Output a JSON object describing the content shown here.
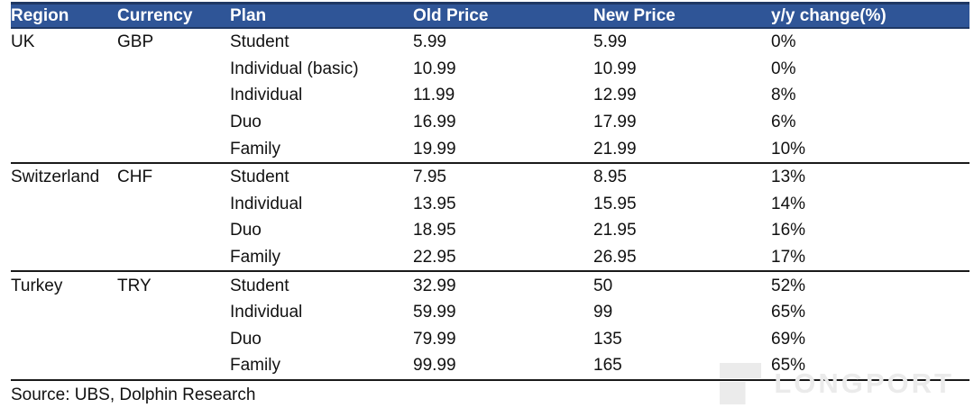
{
  "colors": {
    "header_bg": "#2F5597",
    "header_border": "#1F3864",
    "rule_color": "#1a1a1a",
    "watermark_color": "#ebebeb"
  },
  "table": {
    "columns": [
      "Region",
      "Currency",
      "Plan",
      "Old Price",
      "New Price",
      "y/y change(%)"
    ],
    "groups": [
      {
        "region": "UK",
        "currency": "GBP",
        "rows": [
          {
            "plan": "Student",
            "old": "5.99",
            "new": "5.99",
            "change": "0%"
          },
          {
            "plan": "Individual (basic)",
            "old": "10.99",
            "new": "10.99",
            "change": "0%"
          },
          {
            "plan": "Individual",
            "old": "11.99",
            "new": "12.99",
            "change": "8%"
          },
          {
            "plan": "Duo",
            "old": "16.99",
            "new": "17.99",
            "change": "6%"
          },
          {
            "plan": "Family",
            "old": "19.99",
            "new": "21.99",
            "change": "10%"
          }
        ]
      },
      {
        "region": "Switzerland",
        "currency": "CHF",
        "rows": [
          {
            "plan": "Student",
            "old": "7.95",
            "new": "8.95",
            "change": "13%"
          },
          {
            "plan": "Individual",
            "old": "13.95",
            "new": "15.95",
            "change": "14%"
          },
          {
            "plan": "Duo",
            "old": "18.95",
            "new": "21.95",
            "change": "16%"
          },
          {
            "plan": "Family",
            "old": "22.95",
            "new": "26.95",
            "change": "17%"
          }
        ]
      },
      {
        "region": "Turkey",
        "currency": "TRY",
        "rows": [
          {
            "plan": "Student",
            "old": "32.99",
            "new": "50",
            "change": "52%"
          },
          {
            "plan": "Individual",
            "old": "59.99",
            "new": "99",
            "change": "65%"
          },
          {
            "plan": "Duo",
            "old": "79.99",
            "new": "135",
            "change": "69%"
          },
          {
            "plan": "Family",
            "old": "99.99",
            "new": "165",
            "change": "65%"
          }
        ]
      }
    ],
    "source": "Source:  UBS,  Dolphin Research"
  },
  "watermark": {
    "text": "LONGPORT"
  }
}
